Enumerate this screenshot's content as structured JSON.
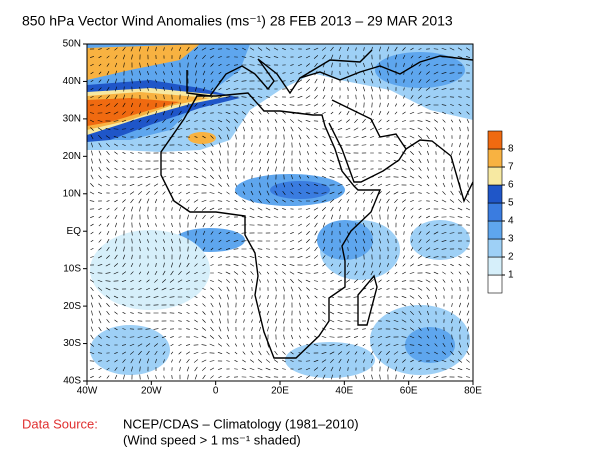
{
  "map": {
    "title": "850 hPa Vector Wind Anomalies (ms⁻¹) 28 FEB 2013 – 29 MAR 2013",
    "lon_ticks": [
      {
        "value": -40,
        "label": "40W"
      },
      {
        "value": -20,
        "label": "20W"
      },
      0,
      {
        "value": 20,
        "label": "20E"
      },
      {
        "value": 40,
        "label": "40E"
      },
      {
        "value": 60,
        "label": "60E"
      },
      {
        "value": 80,
        "label": "80E"
      }
    ],
    "lat_ticks": [
      {
        "value": 50,
        "label": "50N"
      },
      {
        "value": 40,
        "label": "40N"
      },
      {
        "value": 30,
        "label": "30N"
      },
      {
        "value": 20,
        "label": "20N"
      },
      {
        "value": 10,
        "label": "10N"
      },
      {
        "value": 0,
        "label": "EQ"
      },
      {
        "value": -10,
        "label": "10S"
      },
      {
        "value": -20,
        "label": "20S"
      },
      {
        "value": -30,
        "label": "30S"
      },
      {
        "value": -40,
        "label": "40S"
      }
    ],
    "lon_lim": [
      -40,
      80
    ],
    "lat_lim": [
      -40,
      50
    ],
    "colorbar": {
      "levels": [
        1,
        2,
        3,
        4,
        5,
        6,
        7,
        8
      ],
      "colors": [
        "#ffffff",
        "#d6effa",
        "#9ed0f6",
        "#5ea6ee",
        "#3a7ce0",
        "#1f56c8",
        "#f7e9a2",
        "#f8b241",
        "#f06a10"
      ]
    },
    "footer": {
      "source_label": "Data Source:",
      "source": "NCEP/CDAS – Climatology (1981–2010)",
      "note": "(Wind speed > 1 ms⁻¹ shaded)"
    }
  }
}
